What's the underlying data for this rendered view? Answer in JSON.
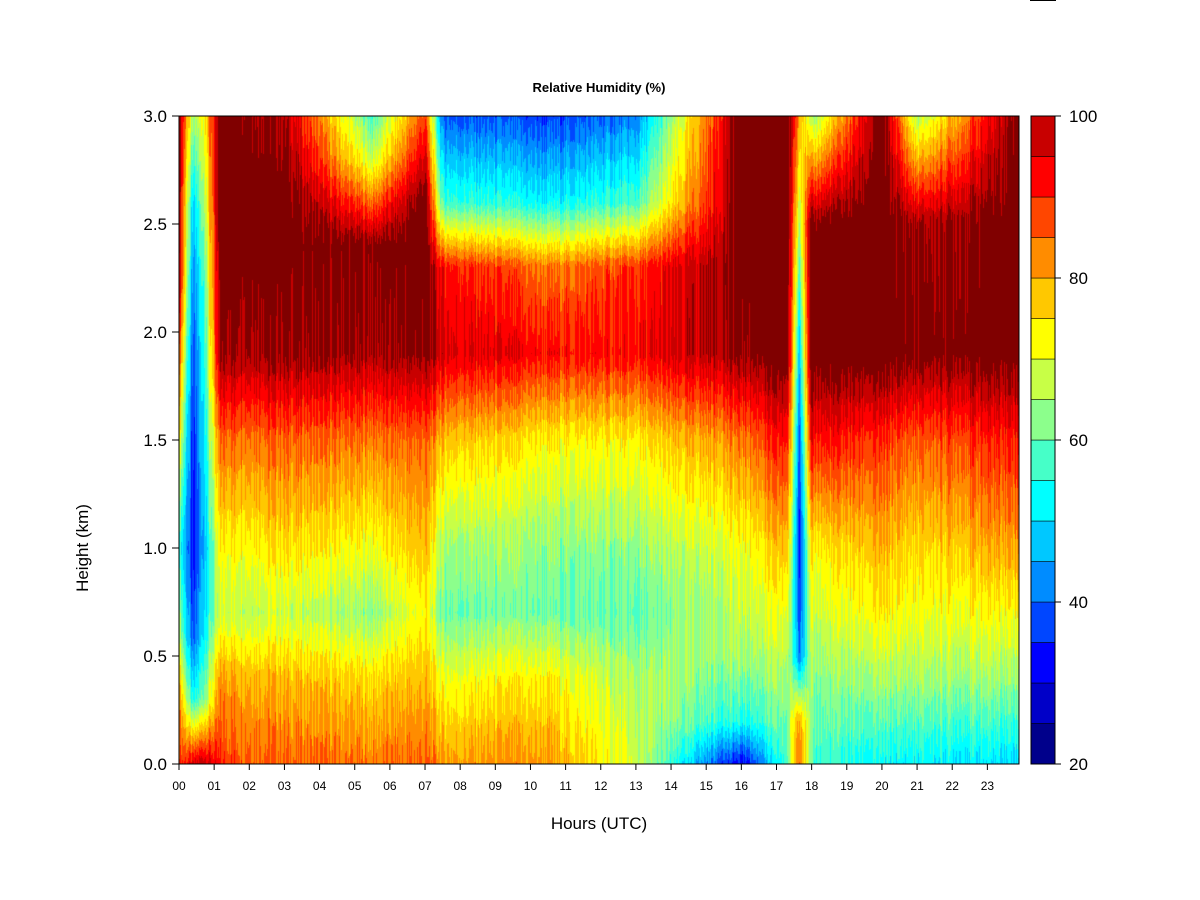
{
  "chart_data": {
    "type": "heatmap",
    "title": "Relative Humidity (%)",
    "xlabel": "Hours (UTC)",
    "ylabel": "Height (km)",
    "x_ticks": [
      "00",
      "01",
      "02",
      "03",
      "04",
      "05",
      "06",
      "07",
      "08",
      "09",
      "10",
      "11",
      "12",
      "13",
      "14",
      "15",
      "16",
      "17",
      "18",
      "19",
      "20",
      "21",
      "22",
      "23"
    ],
    "y_ticks": [
      "0.0",
      "0.5",
      "1.0",
      "1.5",
      "2.0",
      "2.5",
      "3.0"
    ],
    "xlim": [
      0,
      23.9
    ],
    "ylim": [
      0,
      3.0
    ],
    "colorbar": {
      "levels": [
        20,
        25,
        30,
        35,
        40,
        45,
        50,
        55,
        60,
        65,
        70,
        75,
        80,
        85,
        90,
        95,
        100
      ],
      "colors": [
        "#00008b",
        "#0000c8",
        "#0000ff",
        "#0046ff",
        "#008cff",
        "#00c8ff",
        "#00ffff",
        "#46ffc8",
        "#8cff8c",
        "#c8ff46",
        "#ffff00",
        "#ffc800",
        "#ff8c00",
        "#ff4600",
        "#ff0000",
        "#c80000",
        "#800000"
      ],
      "tick_labels": [
        "20",
        "40",
        "60",
        "80",
        "100"
      ]
    },
    "profiles": [
      {
        "hour": 0.0,
        "rh": [
          {
            "h": 0,
            "v": 85
          },
          {
            "h": 0.3,
            "v": 80
          },
          {
            "h": 0.6,
            "v": 65
          },
          {
            "h": 1.0,
            "v": 55
          },
          {
            "h": 1.6,
            "v": 75
          },
          {
            "h": 2.2,
            "v": 95
          },
          {
            "h": 3.0,
            "v": 100
          }
        ]
      },
      {
        "hour": 0.4,
        "rh": [
          {
            "h": 0,
            "v": 90
          },
          {
            "h": 0.3,
            "v": 50
          },
          {
            "h": 0.6,
            "v": 35
          },
          {
            "h": 1.0,
            "v": 30
          },
          {
            "h": 1.6,
            "v": 32
          },
          {
            "h": 2.2,
            "v": 38
          },
          {
            "h": 2.6,
            "v": 45
          },
          {
            "h": 3.0,
            "v": 60
          }
        ]
      },
      {
        "hour": 0.7,
        "rh": [
          {
            "h": 0,
            "v": 95
          },
          {
            "h": 0.3,
            "v": 60
          },
          {
            "h": 0.6,
            "v": 50
          },
          {
            "h": 1.0,
            "v": 45
          },
          {
            "h": 1.6,
            "v": 50
          },
          {
            "h": 2.2,
            "v": 55
          },
          {
            "h": 3.0,
            "v": 70
          }
        ]
      },
      {
        "hour": 1.2,
        "rh": [
          {
            "h": 0,
            "v": 85
          },
          {
            "h": 0.4,
            "v": 78
          },
          {
            "h": 0.7,
            "v": 65
          },
          {
            "h": 1.0,
            "v": 70
          },
          {
            "h": 1.5,
            "v": 82
          },
          {
            "h": 1.9,
            "v": 97
          },
          {
            "h": 2.5,
            "v": 100
          },
          {
            "h": 3.0,
            "v": 100
          }
        ]
      },
      {
        "hour": 3.0,
        "rh": [
          {
            "h": 0,
            "v": 82
          },
          {
            "h": 0.4,
            "v": 75
          },
          {
            "h": 0.7,
            "v": 65
          },
          {
            "h": 1.0,
            "v": 72
          },
          {
            "h": 1.5,
            "v": 82
          },
          {
            "h": 1.9,
            "v": 97
          },
          {
            "h": 2.6,
            "v": 100
          },
          {
            "h": 3.0,
            "v": 95
          }
        ]
      },
      {
        "hour": 5.5,
        "rh": [
          {
            "h": 0,
            "v": 80
          },
          {
            "h": 0.4,
            "v": 72
          },
          {
            "h": 0.7,
            "v": 60
          },
          {
            "h": 1.0,
            "v": 68
          },
          {
            "h": 1.5,
            "v": 80
          },
          {
            "h": 1.9,
            "v": 95
          },
          {
            "h": 2.4,
            "v": 98
          },
          {
            "h": 2.8,
            "v": 65
          },
          {
            "h": 3.0,
            "v": 55
          }
        ]
      },
      {
        "hour": 7.0,
        "rh": [
          {
            "h": 0,
            "v": 82
          },
          {
            "h": 0.4,
            "v": 75
          },
          {
            "h": 0.7,
            "v": 70
          },
          {
            "h": 1.0,
            "v": 75
          },
          {
            "h": 1.5,
            "v": 82
          },
          {
            "h": 1.9,
            "v": 97
          },
          {
            "h": 2.6,
            "v": 100
          },
          {
            "h": 3.0,
            "v": 85
          }
        ]
      },
      {
        "hour": 7.5,
        "rh": [
          {
            "h": 0,
            "v": 78
          },
          {
            "h": 0.4,
            "v": 68
          },
          {
            "h": 0.7,
            "v": 58
          },
          {
            "h": 1.0,
            "v": 62
          },
          {
            "h": 1.5,
            "v": 75
          },
          {
            "h": 1.9,
            "v": 92
          },
          {
            "h": 2.3,
            "v": 88
          },
          {
            "h": 2.6,
            "v": 55
          },
          {
            "h": 3.0,
            "v": 38
          }
        ]
      },
      {
        "hour": 10.5,
        "rh": [
          {
            "h": 0,
            "v": 78
          },
          {
            "h": 0.4,
            "v": 70
          },
          {
            "h": 0.7,
            "v": 58
          },
          {
            "h": 1.0,
            "v": 60
          },
          {
            "h": 1.5,
            "v": 70
          },
          {
            "h": 1.9,
            "v": 88
          },
          {
            "h": 2.3,
            "v": 80
          },
          {
            "h": 2.6,
            "v": 50
          },
          {
            "h": 3.0,
            "v": 35
          }
        ]
      },
      {
        "hour": 13.0,
        "rh": [
          {
            "h": 0,
            "v": 65
          },
          {
            "h": 0.4,
            "v": 62
          },
          {
            "h": 0.7,
            "v": 56
          },
          {
            "h": 1.0,
            "v": 60
          },
          {
            "h": 1.5,
            "v": 70
          },
          {
            "h": 1.9,
            "v": 88
          },
          {
            "h": 2.3,
            "v": 85
          },
          {
            "h": 2.6,
            "v": 55
          },
          {
            "h": 3.0,
            "v": 40
          }
        ]
      },
      {
        "hour": 16.0,
        "rh": [
          {
            "h": 0,
            "v": 30
          },
          {
            "h": 0.2,
            "v": 52
          },
          {
            "h": 0.5,
            "v": 62
          },
          {
            "h": 1.0,
            "v": 68
          },
          {
            "h": 1.5,
            "v": 80
          },
          {
            "h": 1.9,
            "v": 97
          },
          {
            "h": 2.6,
            "v": 100
          },
          {
            "h": 3.0,
            "v": 100
          }
        ]
      },
      {
        "hour": 17.3,
        "rh": [
          {
            "h": 0,
            "v": 55
          },
          {
            "h": 0.4,
            "v": 62
          },
          {
            "h": 0.7,
            "v": 68
          },
          {
            "h": 1.0,
            "v": 75
          },
          {
            "h": 1.5,
            "v": 88
          },
          {
            "h": 1.9,
            "v": 100
          },
          {
            "h": 3.0,
            "v": 100
          }
        ]
      },
      {
        "hour": 17.65,
        "rh": [
          {
            "h": 0,
            "v": 85
          },
          {
            "h": 0.2,
            "v": 80
          },
          {
            "h": 0.5,
            "v": 42
          },
          {
            "h": 1.0,
            "v": 35
          },
          {
            "h": 1.5,
            "v": 40
          },
          {
            "h": 2.0,
            "v": 50
          },
          {
            "h": 2.5,
            "v": 65
          },
          {
            "h": 3.0,
            "v": 80
          }
        ]
      },
      {
        "hour": 18.0,
        "rh": [
          {
            "h": 0,
            "v": 55
          },
          {
            "h": 0.4,
            "v": 60
          },
          {
            "h": 0.7,
            "v": 65
          },
          {
            "h": 1.0,
            "v": 70
          },
          {
            "h": 1.5,
            "v": 88
          },
          {
            "h": 1.9,
            "v": 100
          },
          {
            "h": 2.5,
            "v": 98
          },
          {
            "h": 3.0,
            "v": 60
          }
        ]
      },
      {
        "hour": 20.0,
        "rh": [
          {
            "h": 0,
            "v": 50
          },
          {
            "h": 0.4,
            "v": 62
          },
          {
            "h": 0.7,
            "v": 70
          },
          {
            "h": 1.0,
            "v": 75
          },
          {
            "h": 1.5,
            "v": 85
          },
          {
            "h": 1.9,
            "v": 100
          },
          {
            "h": 3.0,
            "v": 100
          }
        ]
      },
      {
        "hour": 21.0,
        "rh": [
          {
            "h": 0,
            "v": 50
          },
          {
            "h": 0.4,
            "v": 62
          },
          {
            "h": 0.7,
            "v": 68
          },
          {
            "h": 1.0,
            "v": 72
          },
          {
            "h": 1.5,
            "v": 82
          },
          {
            "h": 1.9,
            "v": 98
          },
          {
            "h": 2.5,
            "v": 95
          },
          {
            "h": 3.0,
            "v": 62
          }
        ]
      },
      {
        "hour": 23.9,
        "rh": [
          {
            "h": 0,
            "v": 48
          },
          {
            "h": 0.4,
            "v": 62
          },
          {
            "h": 0.7,
            "v": 70
          },
          {
            "h": 1.0,
            "v": 78
          },
          {
            "h": 1.5,
            "v": 88
          },
          {
            "h": 1.9,
            "v": 100
          },
          {
            "h": 3.0,
            "v": 100
          }
        ]
      }
    ]
  }
}
